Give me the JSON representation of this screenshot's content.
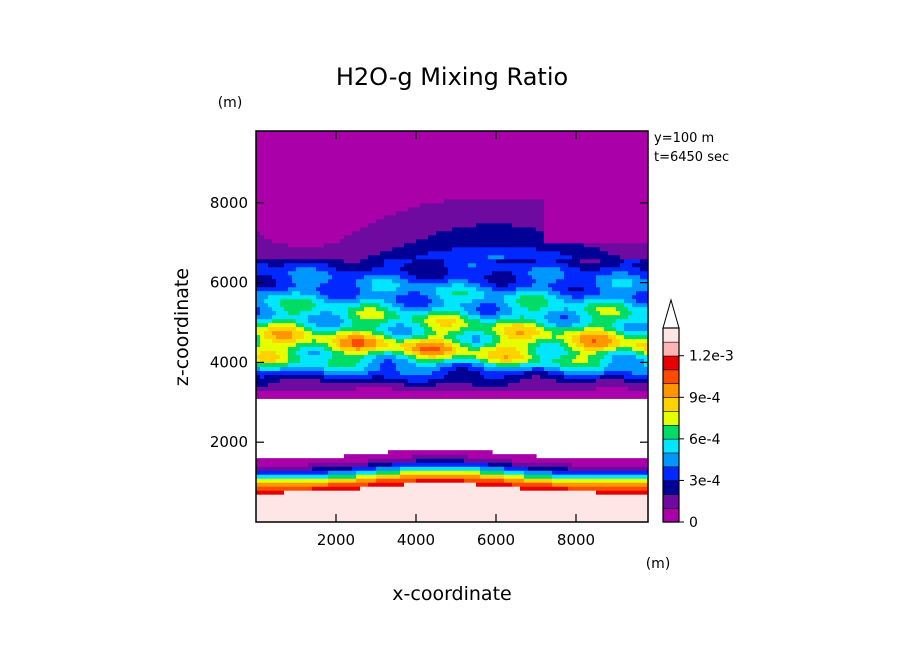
{
  "chart_data": {
    "type": "contour",
    "title": "H2O-g Mixing Ratio",
    "xlabel": "x-coordinate",
    "ylabel": "z-coordinate",
    "x_unit": "(m)",
    "y_unit": "(m)",
    "info": [
      "y=100 m",
      "t=6450 sec"
    ],
    "xlim": [
      0,
      9800
    ],
    "ylim": [
      0,
      9800
    ],
    "x_ticks": [
      2000,
      4000,
      6000,
      8000
    ],
    "y_ticks": [
      2000,
      4000,
      6000,
      8000
    ],
    "colorbar": {
      "levels": [
        0,
        0.0001,
        0.0002,
        0.0003,
        0.0004,
        0.0005,
        0.0006,
        0.0007,
        0.0008,
        0.0009,
        0.001,
        0.0011,
        0.0012
      ],
      "colors": [
        "#aa00aa",
        "#6e0aa0",
        "#000096",
        "#0028ff",
        "#0096ff",
        "#00e6ff",
        "#00dc64",
        "#e6ff00",
        "#ffd200",
        "#ff9600",
        "#ff4b00",
        "#e60000",
        "#ffb4b4",
        "#ffe6e6"
      ],
      "labels": [
        {
          "value": 0,
          "text": "0"
        },
        {
          "value": 0.0003,
          "text": "3e-4"
        },
        {
          "value": 0.0006,
          "text": "6e-4"
        },
        {
          "value": 0.0009,
          "text": "9e-4"
        },
        {
          "value": 0.0012,
          "text": "1.2e-3"
        }
      ],
      "extend": "max"
    },
    "profile": [
      {
        "z": 0,
        "v": 0.0015
      },
      {
        "z": 700,
        "v": 0.00125
      },
      {
        "z": 900,
        "v": 0.001
      },
      {
        "z": 1050,
        "v": 0.0007
      },
      {
        "z": 1200,
        "v": 0.0004
      },
      {
        "z": 1350,
        "v": 0.00015
      },
      {
        "z": 1500,
        "v": 5e-05
      },
      {
        "z": 1650,
        "v": -0.001
      },
      {
        "z": 3000,
        "v": -0.001
      },
      {
        "z": 3200,
        "v": 5e-05
      },
      {
        "z": 3500,
        "v": 0.0002
      },
      {
        "z": 3800,
        "v": 0.0004
      },
      {
        "z": 4100,
        "v": 0.00065
      },
      {
        "z": 4400,
        "v": 0.0008
      },
      {
        "z": 4800,
        "v": 0.00068
      },
      {
        "z": 5300,
        "v": 0.00055
      },
      {
        "z": 5800,
        "v": 0.00045
      },
      {
        "z": 6200,
        "v": 0.00035
      },
      {
        "z": 6600,
        "v": 0.00028
      },
      {
        "z": 7000,
        "v": 0.00018
      },
      {
        "z": 7600,
        "v": 0.00012
      },
      {
        "z": 8200,
        "v": 6e-05
      },
      {
        "z": 9000,
        "v": 2e-05
      },
      {
        "z": 9800,
        "v": 0.0
      }
    ]
  }
}
